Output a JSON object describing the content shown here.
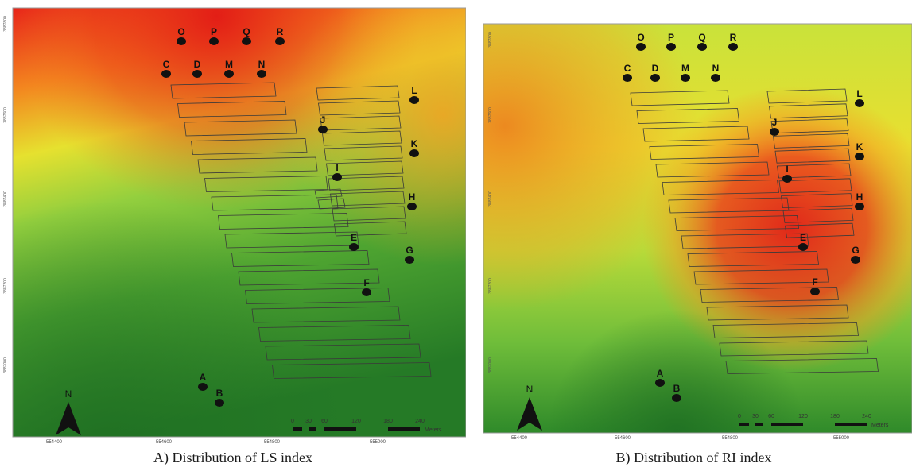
{
  "panels": [
    {
      "id": "a",
      "caption": "A) Distribution of LS index",
      "x_ticks": [
        "554400",
        "554600",
        "554800",
        "555000"
      ],
      "y_ticks": [
        "3887800",
        "3887600",
        "3887400",
        "3887200",
        "3887000"
      ],
      "scale_numbers": [
        "0",
        "30",
        "60",
        "120",
        "180",
        "240"
      ],
      "scale_unit": "Meters",
      "north_label": "N"
    },
    {
      "id": "b",
      "caption": "B) Distribution of RI index",
      "x_ticks": [
        "554400",
        "554600",
        "554800",
        "555000"
      ],
      "y_ticks": [
        "3887800",
        "3887600",
        "3887400",
        "3887200",
        "3887000"
      ],
      "scale_numbers": [
        "0",
        "30",
        "60",
        "120",
        "180",
        "240"
      ],
      "scale_unit": "Meters",
      "north_label": "N"
    }
  ],
  "points": [
    "A",
    "B",
    "C",
    "D",
    "E",
    "F",
    "G",
    "H",
    "I",
    "J",
    "K",
    "L",
    "M",
    "N",
    "O",
    "P",
    "Q",
    "R"
  ],
  "colors": {
    "high": "#e8231a",
    "mid_high": "#f08a1e",
    "mid": "#e9e830",
    "mid_low": "#8fcf3c",
    "low": "#2f8a2a",
    "point_fill": "#111111",
    "outline": "#3a3a3a"
  }
}
